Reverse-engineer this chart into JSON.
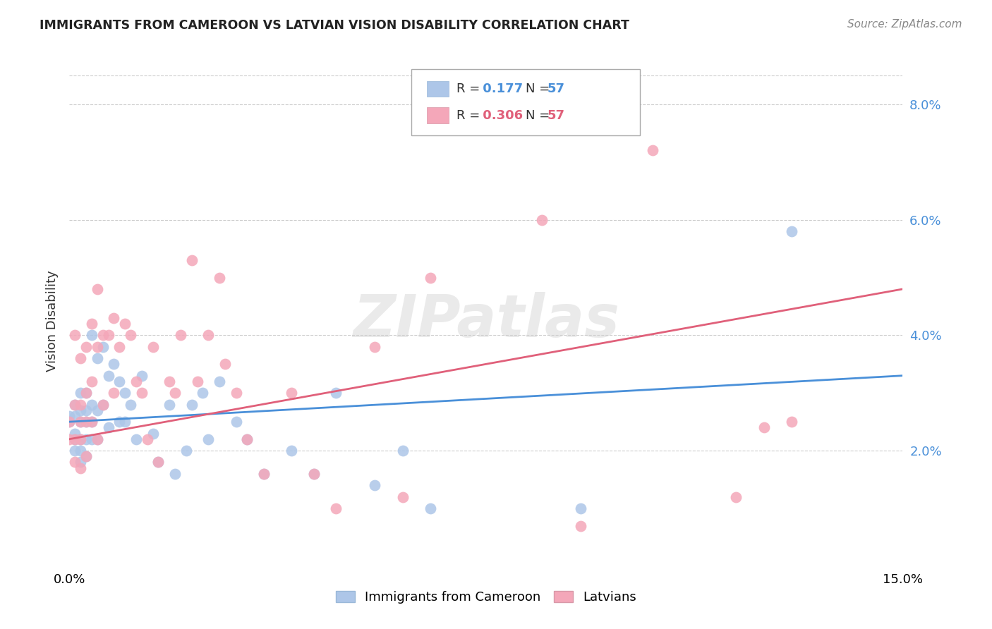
{
  "title": "IMMIGRANTS FROM CAMEROON VS LATVIAN VISION DISABILITY CORRELATION CHART",
  "source": "Source: ZipAtlas.com",
  "ylabel": "Vision Disability",
  "xlim": [
    0.0,
    0.15
  ],
  "ylim": [
    0.0,
    0.085
  ],
  "yticks": [
    0.02,
    0.04,
    0.06,
    0.08
  ],
  "ytick_labels": [
    "2.0%",
    "4.0%",
    "6.0%",
    "8.0%"
  ],
  "xticks": [
    0.0,
    0.05,
    0.1,
    0.15
  ],
  "xtick_labels": [
    "0.0%",
    "",
    "",
    "15.0%"
  ],
  "grid_color": "#cccccc",
  "background_color": "#ffffff",
  "series1_color": "#adc6e8",
  "series2_color": "#f4a7b9",
  "line1_color": "#4a90d9",
  "line2_color": "#e0607a",
  "R1": 0.177,
  "R2": 0.306,
  "N": 57,
  "legend1_label": "Immigrants from Cameroon",
  "legend2_label": "Latvians",
  "watermark": "ZIPatlas",
  "series1_x": [
    0.0,
    0.0,
    0.001,
    0.001,
    0.001,
    0.001,
    0.001,
    0.002,
    0.002,
    0.002,
    0.002,
    0.002,
    0.002,
    0.003,
    0.003,
    0.003,
    0.003,
    0.003,
    0.004,
    0.004,
    0.004,
    0.004,
    0.005,
    0.005,
    0.005,
    0.006,
    0.006,
    0.007,
    0.007,
    0.008,
    0.009,
    0.009,
    0.01,
    0.01,
    0.011,
    0.012,
    0.013,
    0.015,
    0.016,
    0.018,
    0.019,
    0.021,
    0.022,
    0.024,
    0.025,
    0.027,
    0.03,
    0.032,
    0.035,
    0.04,
    0.044,
    0.048,
    0.055,
    0.06,
    0.065,
    0.092,
    0.13
  ],
  "series1_y": [
    0.026,
    0.025,
    0.028,
    0.026,
    0.023,
    0.022,
    0.02,
    0.03,
    0.027,
    0.025,
    0.022,
    0.02,
    0.018,
    0.03,
    0.027,
    0.025,
    0.022,
    0.019,
    0.04,
    0.028,
    0.025,
    0.022,
    0.036,
    0.027,
    0.022,
    0.038,
    0.028,
    0.033,
    0.024,
    0.035,
    0.032,
    0.025,
    0.03,
    0.025,
    0.028,
    0.022,
    0.033,
    0.023,
    0.018,
    0.028,
    0.016,
    0.02,
    0.028,
    0.03,
    0.022,
    0.032,
    0.025,
    0.022,
    0.016,
    0.02,
    0.016,
    0.03,
    0.014,
    0.02,
    0.01,
    0.01,
    0.058
  ],
  "series2_x": [
    0.0,
    0.0,
    0.001,
    0.001,
    0.001,
    0.001,
    0.002,
    0.002,
    0.002,
    0.002,
    0.002,
    0.003,
    0.003,
    0.003,
    0.003,
    0.004,
    0.004,
    0.004,
    0.005,
    0.005,
    0.005,
    0.006,
    0.006,
    0.007,
    0.008,
    0.008,
    0.009,
    0.01,
    0.011,
    0.012,
    0.013,
    0.014,
    0.015,
    0.016,
    0.018,
    0.019,
    0.02,
    0.022,
    0.023,
    0.025,
    0.027,
    0.028,
    0.03,
    0.032,
    0.035,
    0.04,
    0.044,
    0.048,
    0.055,
    0.06,
    0.065,
    0.085,
    0.092,
    0.105,
    0.12,
    0.125,
    0.13
  ],
  "series2_y": [
    0.025,
    0.022,
    0.04,
    0.028,
    0.022,
    0.018,
    0.036,
    0.028,
    0.025,
    0.022,
    0.017,
    0.038,
    0.03,
    0.025,
    0.019,
    0.042,
    0.032,
    0.025,
    0.048,
    0.038,
    0.022,
    0.04,
    0.028,
    0.04,
    0.043,
    0.03,
    0.038,
    0.042,
    0.04,
    0.032,
    0.03,
    0.022,
    0.038,
    0.018,
    0.032,
    0.03,
    0.04,
    0.053,
    0.032,
    0.04,
    0.05,
    0.035,
    0.03,
    0.022,
    0.016,
    0.03,
    0.016,
    0.01,
    0.038,
    0.012,
    0.05,
    0.06,
    0.007,
    0.072,
    0.012,
    0.024,
    0.025
  ]
}
